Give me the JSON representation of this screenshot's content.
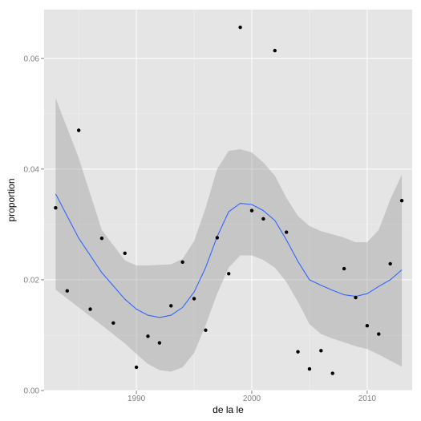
{
  "chart_data": {
    "type": "scatter",
    "title": "",
    "xlabel": "de la le",
    "ylabel": "proportion",
    "xlim": [
      1982.0,
      2013.9
    ],
    "ylim": [
      0.0,
      0.0688
    ],
    "x_ticks": [
      1990,
      2000,
      2010
    ],
    "y_ticks": [
      0.0,
      0.02,
      0.04,
      0.06
    ],
    "x_tick_labels": [
      "1990",
      "2000",
      "2010"
    ],
    "y_tick_labels": [
      "0.00",
      "0.02",
      "0.04",
      "0.06"
    ],
    "grid": true,
    "background": "#e5e5e5",
    "point_color": "#000000",
    "smooth_color": "#3366ff",
    "band_color": "#999999",
    "series": [
      {
        "points": [
          {
            "x": 1983,
            "y": 0.033
          },
          {
            "x": 1984,
            "y": 0.018
          },
          {
            "x": 1985,
            "y": 0.047
          },
          {
            "x": 1986,
            "y": 0.0147
          },
          {
            "x": 1987,
            "y": 0.0275
          },
          {
            "x": 1988,
            "y": 0.0122
          },
          {
            "x": 1989,
            "y": 0.0248
          },
          {
            "x": 1990,
            "y": 0.0042
          },
          {
            "x": 1991,
            "y": 0.0098
          },
          {
            "x": 1992,
            "y": 0.0086
          },
          {
            "x": 1993,
            "y": 0.0153
          },
          {
            "x": 1994,
            "y": 0.0232
          },
          {
            "x": 1995,
            "y": 0.0166
          },
          {
            "x": 1996,
            "y": 0.0109
          },
          {
            "x": 1997,
            "y": 0.0276
          },
          {
            "x": 1998,
            "y": 0.0211
          },
          {
            "x": 1999,
            "y": 0.0656
          },
          {
            "x": 2000,
            "y": 0.0325
          },
          {
            "x": 2001,
            "y": 0.031
          },
          {
            "x": 2002,
            "y": 0.0614
          },
          {
            "x": 2003,
            "y": 0.0286
          },
          {
            "x": 2004,
            "y": 0.007
          },
          {
            "x": 2005,
            "y": 0.0039
          },
          {
            "x": 2006,
            "y": 0.0072
          },
          {
            "x": 2007,
            "y": 0.0031
          },
          {
            "x": 2008,
            "y": 0.022
          },
          {
            "x": 2009,
            "y": 0.0168
          },
          {
            "x": 2010,
            "y": 0.0117
          },
          {
            "x": 2011,
            "y": 0.0102
          },
          {
            "x": 2012,
            "y": 0.0229
          },
          {
            "x": 2013,
            "y": 0.0343
          }
        ]
      }
    ],
    "smooth": {
      "x": [
        1983,
        1985,
        1987,
        1989,
        1990,
        1991,
        1992,
        1993,
        1994,
        1995,
        1996,
        1997,
        1998,
        1999,
        2000,
        2001,
        2002,
        2003,
        2004,
        2005,
        2006,
        2007,
        2008,
        2009,
        2010,
        2011,
        2012,
        2013
      ],
      "y": [
        0.0355,
        0.0275,
        0.0213,
        0.0165,
        0.0147,
        0.0136,
        0.0132,
        0.0136,
        0.015,
        0.0178,
        0.0222,
        0.0278,
        0.0323,
        0.0338,
        0.0336,
        0.0325,
        0.0307,
        0.0272,
        0.0233,
        0.02,
        0.019,
        0.0181,
        0.0173,
        0.017,
        0.0175,
        0.0188,
        0.02,
        0.0218
      ],
      "upper": [
        0.0528,
        0.042,
        0.029,
        0.0235,
        0.0226,
        0.0226,
        0.0227,
        0.0228,
        0.0238,
        0.027,
        0.033,
        0.04,
        0.0433,
        0.0436,
        0.043,
        0.0412,
        0.0388,
        0.0348,
        0.0315,
        0.0297,
        0.0288,
        0.0282,
        0.0276,
        0.0268,
        0.0268,
        0.029,
        0.0345,
        0.039
      ],
      "lower": [
        0.0182,
        0.015,
        0.0118,
        0.0085,
        0.0066,
        0.0048,
        0.0037,
        0.0034,
        0.0042,
        0.0068,
        0.0118,
        0.0175,
        0.0222,
        0.0244,
        0.0244,
        0.0236,
        0.0222,
        0.0196,
        0.016,
        0.012,
        0.0102,
        0.0094,
        0.0087,
        0.008,
        0.0075,
        0.0065,
        0.0054,
        0.0043
      ]
    }
  }
}
